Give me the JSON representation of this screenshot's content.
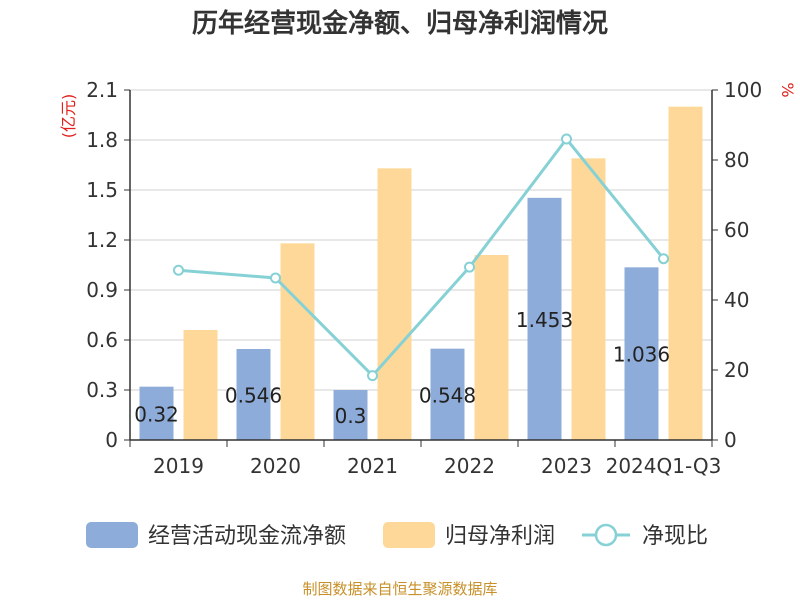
{
  "chart_data": {
    "type": "bar",
    "title": "历年经营现金净额、归母净利润情况",
    "categories": [
      "2019",
      "2020",
      "2021",
      "2022",
      "2023",
      "2024Q1-Q3"
    ],
    "y_left": {
      "unit": "(亿元)",
      "ylim": [
        0,
        2.1
      ],
      "ticks": [
        "0",
        "0.3",
        "0.6",
        "0.9",
        "1.2",
        "1.5",
        "1.8",
        "2.1"
      ]
    },
    "y_right": {
      "unit": "%",
      "ylim": [
        0,
        100
      ],
      "ticks": [
        "0",
        "20",
        "40",
        "60",
        "80",
        "100"
      ]
    },
    "series": [
      {
        "name": "经营活动现金流净额",
        "type": "bar",
        "axis": "left",
        "color": "#8eacd9",
        "values": [
          0.32,
          0.546,
          0.3,
          0.548,
          1.453,
          1.036
        ],
        "labels": [
          "0.32",
          "0.546",
          "0.3",
          "0.548",
          "1.453",
          "1.036"
        ]
      },
      {
        "name": "归母净利润",
        "type": "bar",
        "axis": "left",
        "color": "#fdd898",
        "values": [
          0.66,
          1.18,
          1.63,
          1.11,
          1.69,
          2.0
        ]
      },
      {
        "name": "净现比",
        "type": "line",
        "axis": "right",
        "color": "#86d1d5",
        "values": [
          48.5,
          46.3,
          18.4,
          49.4,
          86.0,
          51.8
        ]
      }
    ],
    "grid": true,
    "legend": "bottom"
  },
  "source": "制图数据来自恒生聚源数据库"
}
